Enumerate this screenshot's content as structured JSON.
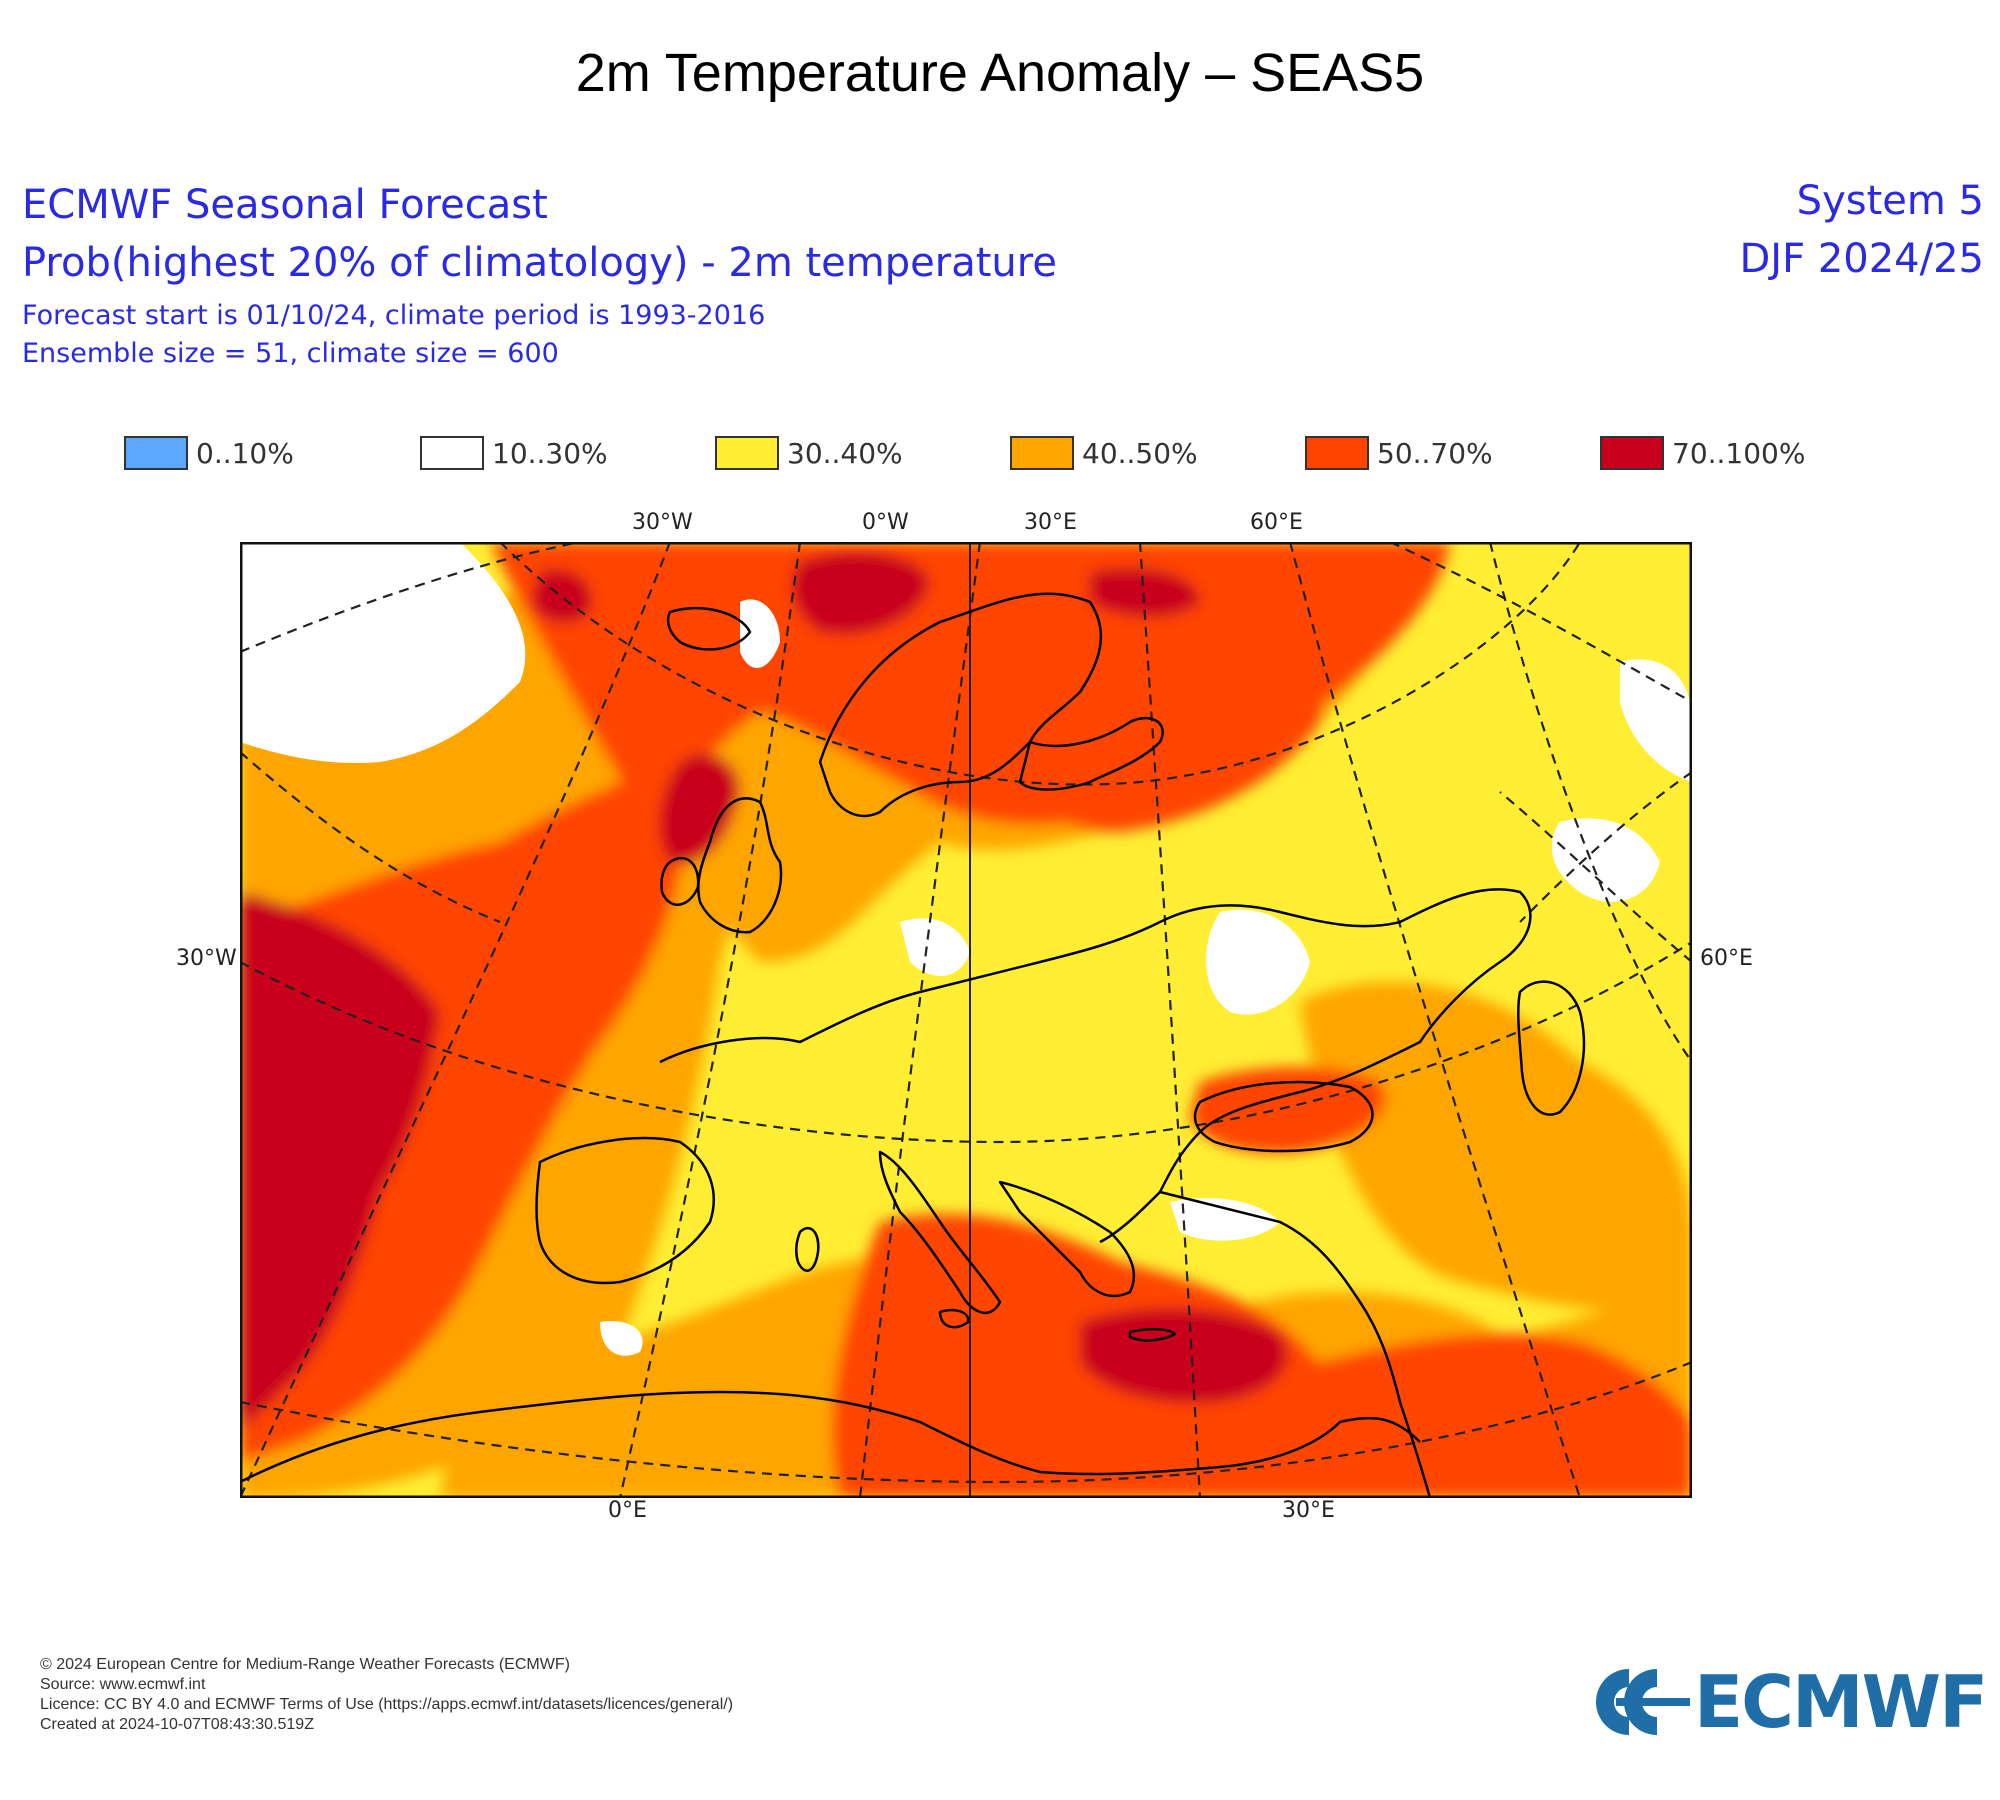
{
  "page_title": "2m Temperature Anomaly – SEAS5",
  "header": {
    "line1": "ECMWF Seasonal Forecast",
    "line2": "Prob(highest 20% of climatology) - 2m temperature",
    "line3": "Forecast start is 01/10/24, climate period is 1993-2016",
    "line4": "Ensemble size = 51, climate size = 600",
    "system": "System 5",
    "season": "DJF 2024/25"
  },
  "legend": [
    {
      "label": "0..10%",
      "color": "#5aa9ff"
    },
    {
      "label": "10..30%",
      "color": "#ffffff"
    },
    {
      "label": "30..40%",
      "color": "#ffee33"
    },
    {
      "label": "40..50%",
      "color": "#ffa500"
    },
    {
      "label": "50..70%",
      "color": "#ff4400"
    },
    {
      "label": "70..100%",
      "color": "#c8001e"
    }
  ],
  "map_labels": {
    "top": [
      "30°W",
      "0°W",
      "30°E",
      "60°E"
    ],
    "left": "30°W",
    "right": "60°E",
    "bottom": [
      "0°E",
      "30°E"
    ]
  },
  "footer": {
    "copyright": "© 2024 European Centre for Medium-Range Weather Forecasts (ECMWF)",
    "source": "Source: www.ecmwf.int",
    "licence": "Licence: CC BY 4.0 and ECMWF Terms of Use (https://apps.ecmwf.int/datasets/licences/general/)",
    "created": "Created at 2024-10-07T08:43:30.519Z"
  },
  "logo_text": "ECMWF"
}
